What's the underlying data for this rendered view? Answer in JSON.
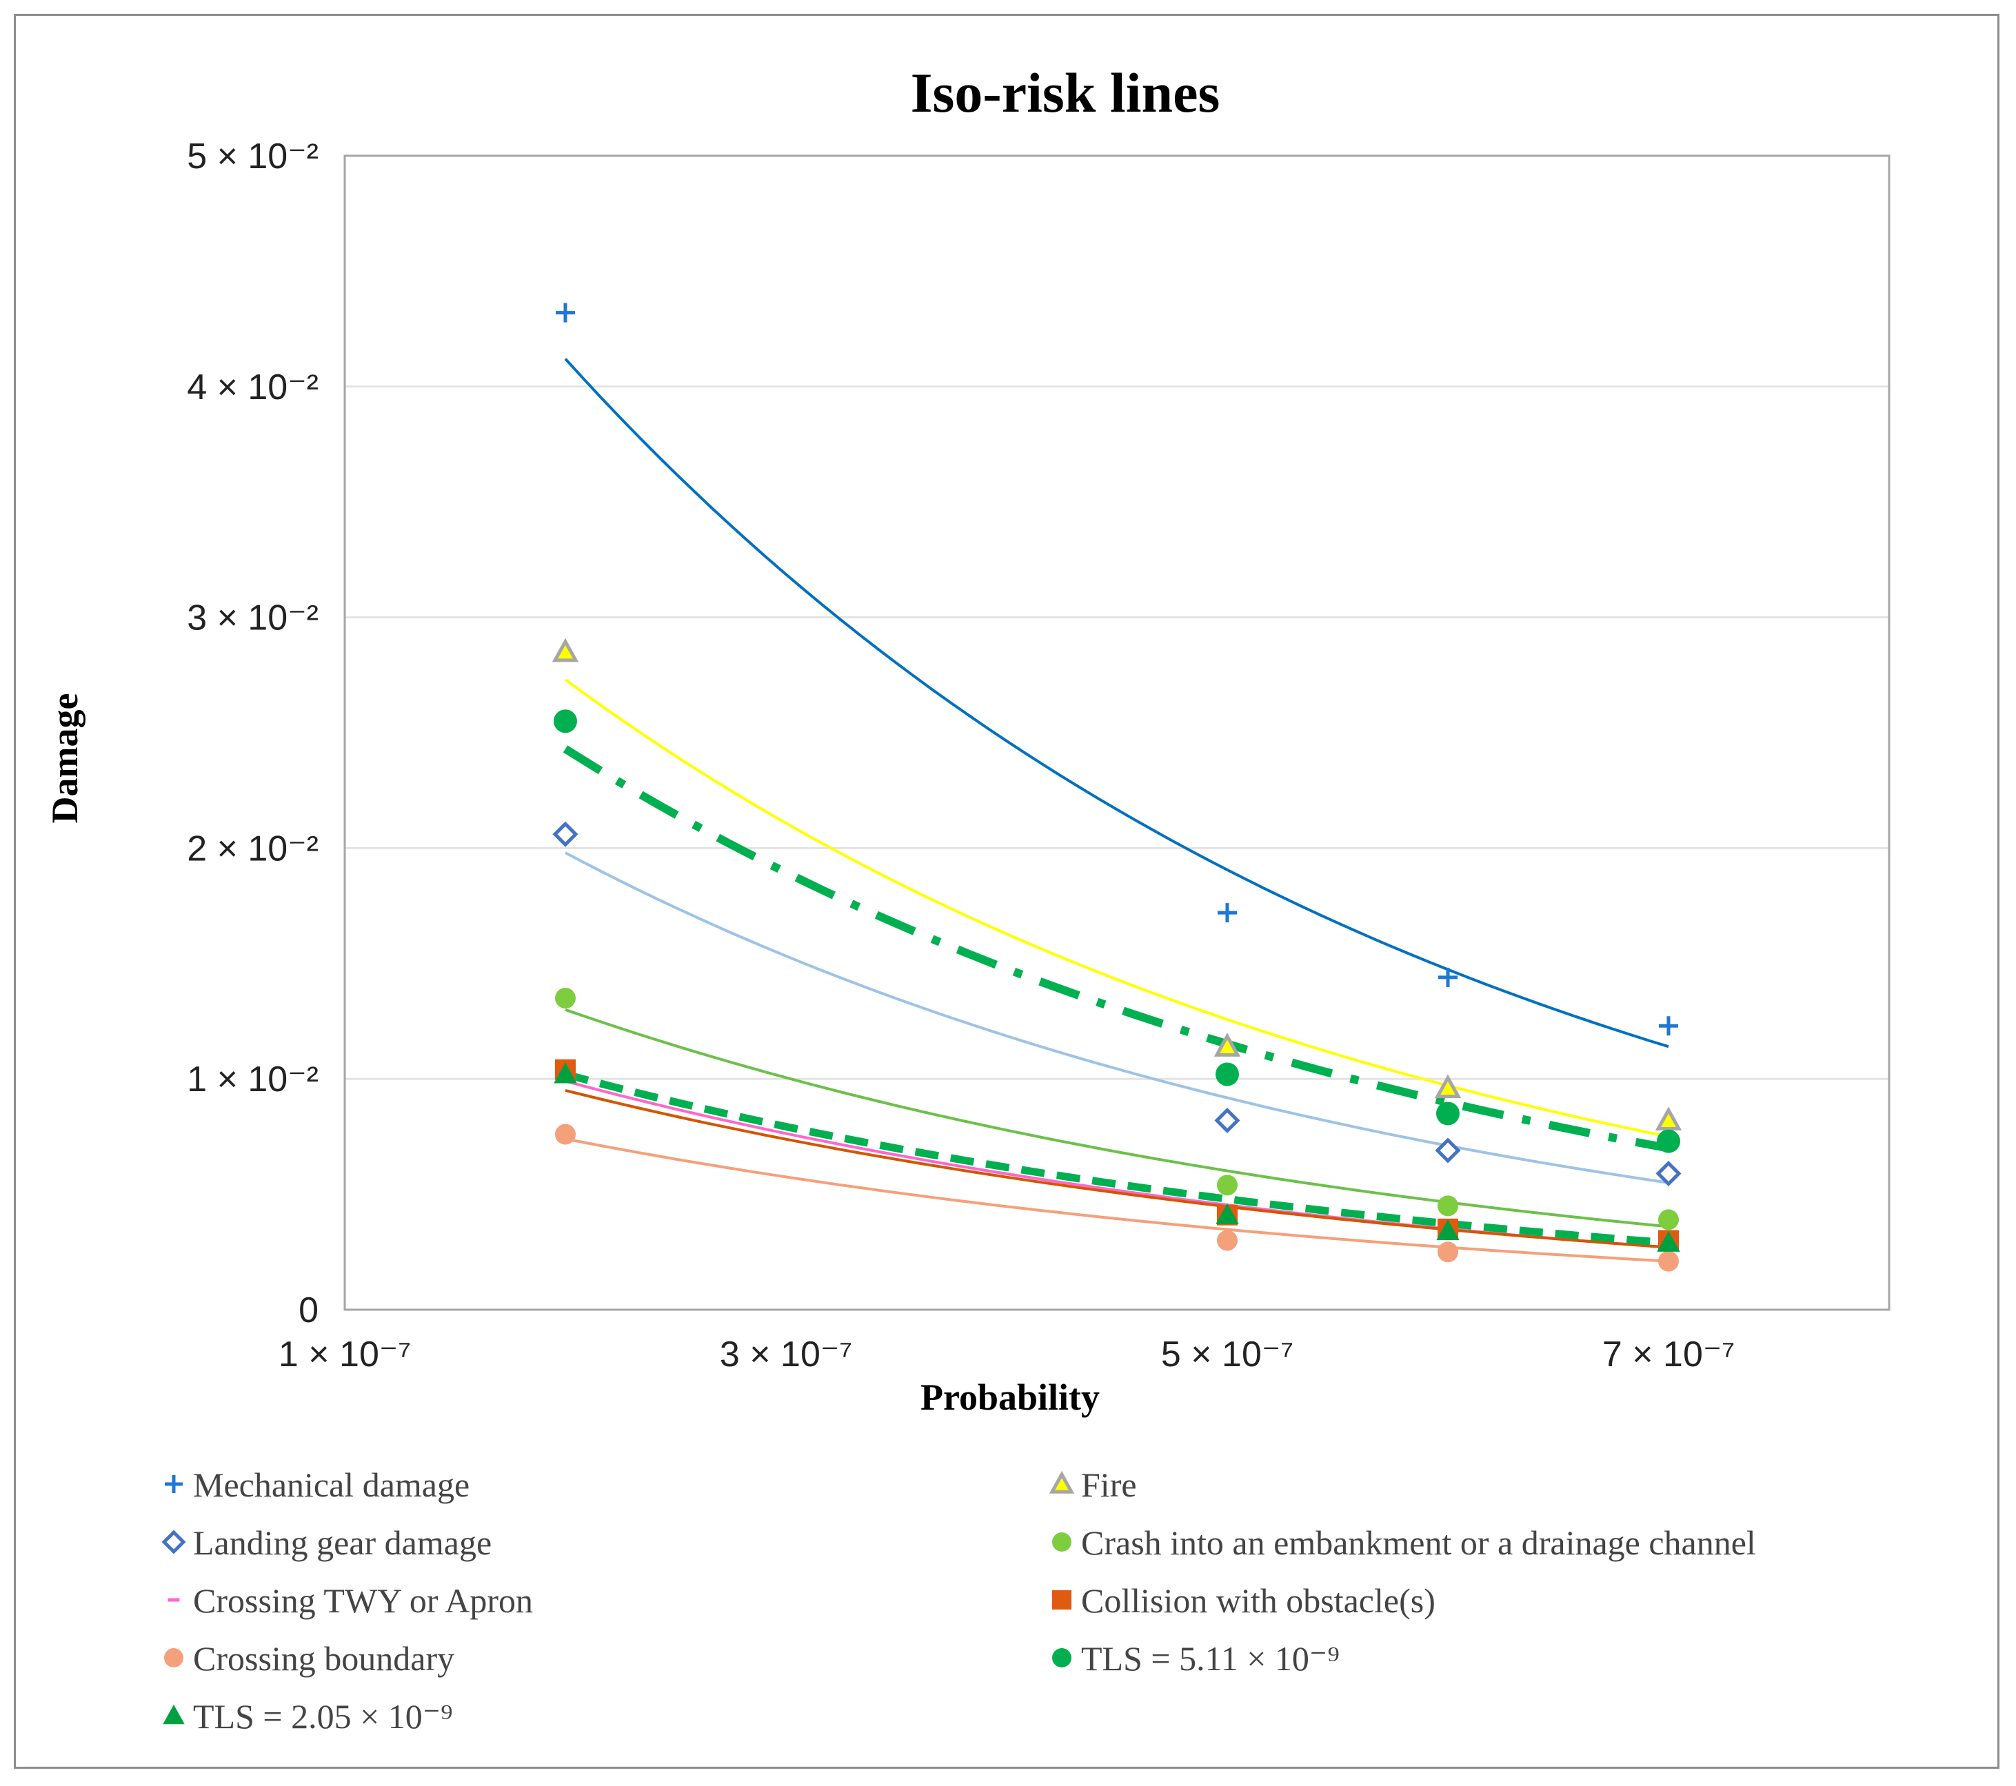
{
  "chart_data": {
    "type": "scatter",
    "title": "Iso-risk lines",
    "xlabel": "Probability",
    "ylabel": "Damage",
    "xlim": [
      1e-07,
      8e-07
    ],
    "ylim": [
      0,
      0.05
    ],
    "x_ticks": [
      {
        "value": 1e-07,
        "label": "1 × 10⁻⁷"
      },
      {
        "value": 3e-07,
        "label": "3 × 10⁻⁷"
      },
      {
        "value": 5e-07,
        "label": "5 × 10⁻⁷"
      },
      {
        "value": 7e-07,
        "label": "7 × 10⁻⁷"
      }
    ],
    "y_ticks": [
      {
        "value": 0,
        "label": "0"
      },
      {
        "value": 0.01,
        "label": "1 × 10⁻²"
      },
      {
        "value": 0.02,
        "label": "2 × 10⁻²"
      },
      {
        "value": 0.03,
        "label": "3 × 10⁻²"
      },
      {
        "value": 0.04,
        "label": "4 × 10⁻²"
      },
      {
        "value": 0.05,
        "label": "5 × 10⁻²"
      }
    ],
    "grid": "horizontal",
    "legend_position": "bottom",
    "series": [
      {
        "name": "Mechanical damage",
        "marker": "plus",
        "color": "#1f77d4",
        "line_color": "#0070c0",
        "line_style": "solid",
        "x": [
          2e-07,
          5e-07,
          6e-07,
          7e-07
        ],
        "y": [
          0.0432,
          0.0172,
          0.0144,
          0.0123
        ],
        "fit": {
          "x": [
            2e-07,
            7e-07
          ],
          "y": [
            0.0412,
            0.0114
          ]
        }
      },
      {
        "name": "Fire",
        "marker": "triangle-open",
        "color": "#a6a6a6",
        "fill": "#ffff00",
        "line_color": "#ffff00",
        "line_style": "solid",
        "x": [
          2e-07,
          5e-07,
          6e-07,
          7e-07
        ],
        "y": [
          0.0285,
          0.0114,
          0.0096,
          0.0082
        ],
        "fit": {
          "x": [
            2e-07,
            7e-07
          ],
          "y": [
            0.0273,
            0.0075
          ]
        }
      },
      {
        "name": "Landing gear damage",
        "marker": "diamond-open",
        "color": "#4472c4",
        "line_color": "#9dc3e6",
        "line_style": "solid",
        "x": [
          2e-07,
          5e-07,
          6e-07,
          7e-07
        ],
        "y": [
          0.0206,
          0.0082,
          0.0069,
          0.0059
        ],
        "fit": {
          "x": [
            2e-07,
            7e-07
          ],
          "y": [
            0.0198,
            0.0055
          ]
        }
      },
      {
        "name": "Crash into an embankment or a drainage channel",
        "marker": "circle",
        "color": "#7dcd3e",
        "line_color": "#6cc04a",
        "line_style": "solid",
        "x": [
          2e-07,
          5e-07,
          6e-07,
          7e-07
        ],
        "y": [
          0.0135,
          0.0054,
          0.0045,
          0.0039
        ],
        "fit": {
          "x": [
            2e-07,
            7e-07
          ],
          "y": [
            0.013,
            0.0036
          ]
        }
      },
      {
        "name": "Crossing TWY or Apron",
        "marker": "dash",
        "color": "#ff66cc",
        "line_color": "#ff66cc",
        "line_style": "solid",
        "x": [
          2e-07,
          5e-07,
          6e-07,
          7e-07
        ],
        "y": [
          0.0102,
          0.0042,
          0.0035,
          0.0029
        ],
        "fit": {
          "x": [
            2e-07,
            7e-07
          ],
          "y": [
            0.0099,
            0.0027
          ]
        }
      },
      {
        "name": "Collision with obstacle(s)",
        "marker": "square",
        "color": "#e05a10",
        "line_color": "#d45500",
        "line_style": "solid",
        "x": [
          2e-07,
          5e-07,
          6e-07,
          7e-07
        ],
        "y": [
          0.0104,
          0.0041,
          0.0035,
          0.003
        ],
        "fit": {
          "x": [
            2e-07,
            7e-07
          ],
          "y": [
            0.0095,
            0.0027
          ]
        }
      },
      {
        "name": "Crossing boundary",
        "marker": "circle",
        "color": "#f4a07a",
        "line_color": "#f4a07a",
        "line_style": "solid",
        "x": [
          2e-07,
          5e-07,
          6e-07,
          7e-07
        ],
        "y": [
          0.0076,
          0.003,
          0.0025,
          0.0021
        ],
        "fit": {
          "x": [
            2e-07,
            7e-07
          ],
          "y": [
            0.0074,
            0.0021
          ]
        }
      },
      {
        "name": "TLS = 5.11 × 10⁻⁹",
        "marker": "circle",
        "color": "#00b050",
        "line_color": "#00b050",
        "line_style": "dashdot",
        "x": [
          2e-07,
          5e-07,
          6e-07,
          7e-07
        ],
        "y": [
          0.0255,
          0.0102,
          0.0085,
          0.0073
        ],
        "fit": {
          "x": [
            2e-07,
            7e-07
          ],
          "y": [
            0.0243,
            0.007
          ]
        }
      },
      {
        "name": "TLS = 2.05 × 10⁻⁹",
        "marker": "triangle",
        "color": "#00a040",
        "line_color": "#00b050",
        "line_style": "dashed",
        "x": [
          2e-07,
          5e-07,
          6e-07,
          7e-07
        ],
        "y": [
          0.0102,
          0.0041,
          0.0034,
          0.0029
        ],
        "fit": {
          "x": [
            2e-07,
            7e-07
          ],
          "y": [
            0.0102,
            0.0029
          ]
        }
      }
    ]
  }
}
